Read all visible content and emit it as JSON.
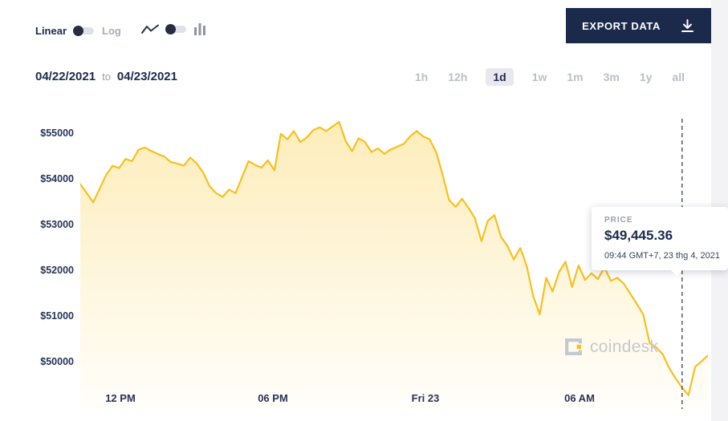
{
  "header": {
    "scale_toggle": {
      "left_label": "Linear",
      "right_label": "Log"
    },
    "export_button": {
      "label": "EXPORT DATA"
    }
  },
  "icons": {
    "export_button": "download-arrow-icon",
    "chart_type_left": "line-chart-icon",
    "chart_type_right": "bar-chart-icon",
    "watermark": "coindesk-mark-icon"
  },
  "date_range": {
    "start": "04/22/2021",
    "separator": "to",
    "end": "04/23/2021"
  },
  "range_selector": {
    "options": [
      "1h",
      "12h",
      "1d",
      "1w",
      "1m",
      "3m",
      "1y",
      "all"
    ],
    "active": "1d"
  },
  "tooltip": {
    "label": "PRICE",
    "price": "$49,445.36",
    "timestamp": "09:44 GMT+7, 23 thg 4, 2021"
  },
  "watermark": {
    "text": "coindesk"
  },
  "colors": {
    "accent_navy": "#1a2b4c",
    "line_gold": "#f8bf1d",
    "muted_gray": "#b9bec9"
  },
  "chart_data": {
    "type": "area",
    "x_start": "04/22/2021",
    "x_end": "04/23/2021",
    "x_ticks": [
      "12 PM",
      "06 PM",
      "Fri 23",
      "06 AM"
    ],
    "y_ticks": [
      "$55000",
      "$54000",
      "$53000",
      "$52000",
      "$51000",
      "$50000"
    ],
    "ylim": [
      48980,
      55330
    ],
    "grid": false,
    "legend": false,
    "line_color": "#f8bf1d",
    "values": [
      53900,
      53700,
      53500,
      53800,
      54100,
      54300,
      54250,
      54450,
      54400,
      54650,
      54700,
      54620,
      54560,
      54500,
      54380,
      54350,
      54300,
      54480,
      54350,
      54150,
      53850,
      53700,
      53620,
      53780,
      53700,
      54050,
      54400,
      54320,
      54260,
      54420,
      54200,
      55000,
      54880,
      55060,
      54820,
      54920,
      55080,
      55140,
      55060,
      55160,
      55260,
      54850,
      54620,
      54900,
      54820,
      54600,
      54680,
      54560,
      54660,
      54720,
      54780,
      54950,
      55060,
      54940,
      54880,
      54600,
      54100,
      53550,
      53400,
      53580,
      53380,
      53150,
      52650,
      53100,
      53220,
      52750,
      52550,
      52250,
      52500,
      52100,
      51450,
      51050,
      51850,
      51550,
      51980,
      52200,
      51650,
      52120,
      51800,
      51950,
      51820,
      52080,
      51780,
      51850,
      51720,
      51500,
      51280,
      51050,
      50420,
      50330,
      50180,
      49880,
      49650,
      49445.36,
      49280,
      49900,
      50020,
      50150
    ],
    "marker_index": 93,
    "marker_price": 49445.36
  }
}
